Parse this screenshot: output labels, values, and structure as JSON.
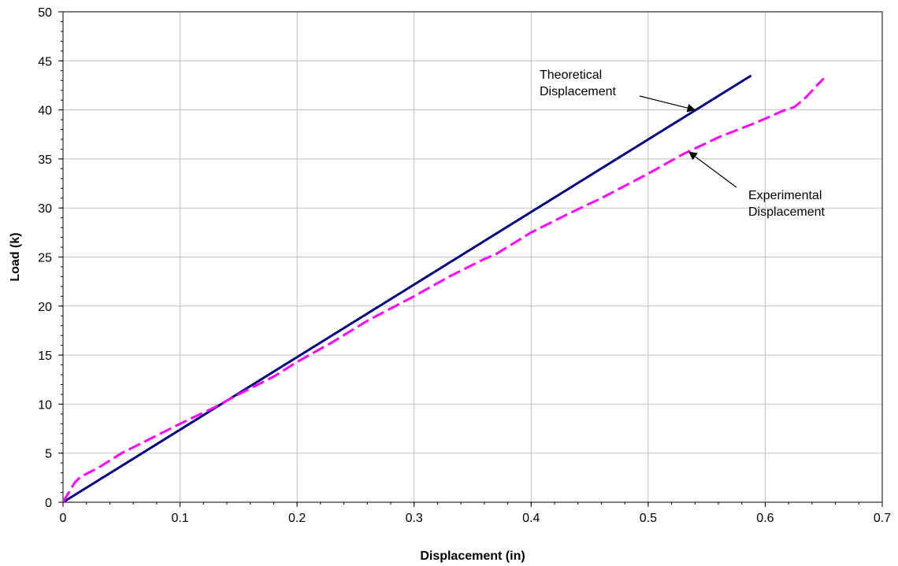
{
  "chart_data": {
    "type": "line",
    "title": "",
    "xlabel": "Displacement (in)",
    "ylabel": "Load (k)",
    "xlim": [
      0,
      0.7
    ],
    "ylim": [
      0,
      50
    ],
    "xticks": [
      "0",
      "0.1",
      "0.2",
      "0.3",
      "0.4",
      "0.5",
      "0.6",
      "0.7"
    ],
    "yticks": [
      "0",
      "5",
      "10",
      "15",
      "20",
      "25",
      "30",
      "35",
      "40",
      "45",
      "50"
    ],
    "grid": true,
    "legend": "none",
    "colors": {
      "theoretical": "#000080",
      "experimental": "#ff00ff"
    },
    "series": [
      {
        "name": "Theoretical Displacement",
        "style": "solid",
        "x": [
          0,
          0.588
        ],
        "y": [
          0,
          43.5
        ]
      },
      {
        "name": "Experimental Displacement",
        "style": "dashed",
        "x": [
          0,
          0.005,
          0.01,
          0.015,
          0.03,
          0.05,
          0.08,
          0.1,
          0.13,
          0.15,
          0.18,
          0.2,
          0.23,
          0.26,
          0.3,
          0.33,
          0.36,
          0.37,
          0.4,
          0.43,
          0.46,
          0.5,
          0.53,
          0.56,
          0.59,
          0.6,
          0.615,
          0.625,
          0.635,
          0.645,
          0.65
        ],
        "y": [
          0,
          1.0,
          2.0,
          2.6,
          3.5,
          5.0,
          6.8,
          8.0,
          9.7,
          11.0,
          12.8,
          14.3,
          16.3,
          18.5,
          21.0,
          23.0,
          24.8,
          25.3,
          27.5,
          29.3,
          31.0,
          33.5,
          35.5,
          37.2,
          38.6,
          39.1,
          39.9,
          40.3,
          41.3,
          42.6,
          43.2
        ]
      }
    ],
    "annotations": [
      {
        "lines": [
          "Theoretical",
          "Displacement"
        ],
        "arrow_to": [
          0.54,
          40.0
        ]
      },
      {
        "lines": [
          "Experimental",
          "Displacement"
        ],
        "arrow_to": [
          0.535,
          35.7
        ]
      }
    ]
  }
}
